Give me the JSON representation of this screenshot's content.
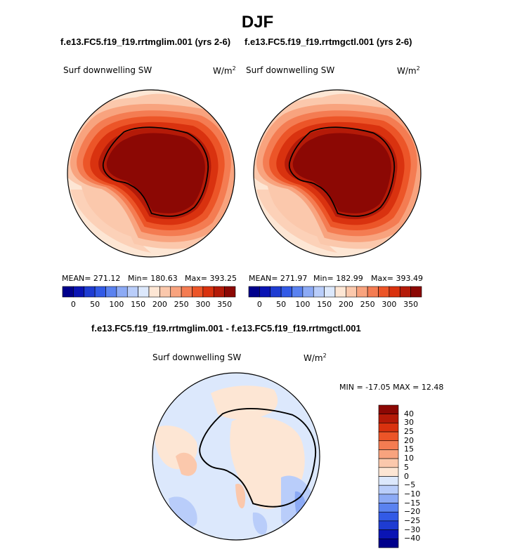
{
  "title": "DJF",
  "top_panels": [
    {
      "case": "f.e13.FC5.f19_f19.rrtmglim.001 (yrs 2-6)",
      "variable": "Surf downwelling SW",
      "units_base": "W/m",
      "units_exp": "2",
      "stats": {
        "mean": "MEAN= 271.12",
        "min": "Min= 180.63",
        "max": "Max= 393.25"
      }
    },
    {
      "case": "f.e13.FC5.f19_f19.rrtmgctl.001 (yrs 2-6)",
      "variable": "Surf downwelling SW",
      "units_base": "W/m",
      "units_exp": "2",
      "stats": {
        "mean": "MEAN= 271.97",
        "min": "Min= 182.99",
        "max": "Max= 393.49"
      }
    }
  ],
  "abs_colorbar": {
    "tick_labels": [
      "0",
      "50",
      "100",
      "150",
      "200",
      "250",
      "300",
      "350"
    ],
    "colors": [
      "#00008c",
      "#0a14b4",
      "#1e3cd2",
      "#325ae6",
      "#5a82f0",
      "#8caaf5",
      "#b9cdfa",
      "#dce8fc",
      "#fde6d4",
      "#fbc8ac",
      "#f8a37e",
      "#f47c52",
      "#ec5528",
      "#d9320f",
      "#b41a08",
      "#8c0804"
    ]
  },
  "diff_panel": {
    "case": "f.e13.FC5.f19_f19.rrtmglim.001 - f.e13.FC5.f19_f19.rrtmgctl.001",
    "variable": "Surf downwelling SW",
    "units_base": "W/m",
    "units_exp": "2",
    "minmax": "MIN = -17.05 MAX =  12.48"
  },
  "diff_colorbar": {
    "tick_labels": [
      "40",
      "30",
      "25",
      "20",
      "15",
      "10",
      "5",
      "0",
      "−5",
      "−10",
      "−15",
      "−20",
      "−25",
      "−30",
      "−40"
    ],
    "colors": [
      "#8c0804",
      "#b41a08",
      "#d9320f",
      "#ec5528",
      "#f47c52",
      "#f8a37e",
      "#fbc8ac",
      "#fde6d4",
      "#dce8fc",
      "#b9cdfa",
      "#8caaf5",
      "#5a82f0",
      "#325ae6",
      "#1e3cd2",
      "#0a14b4",
      "#00008c"
    ]
  }
}
